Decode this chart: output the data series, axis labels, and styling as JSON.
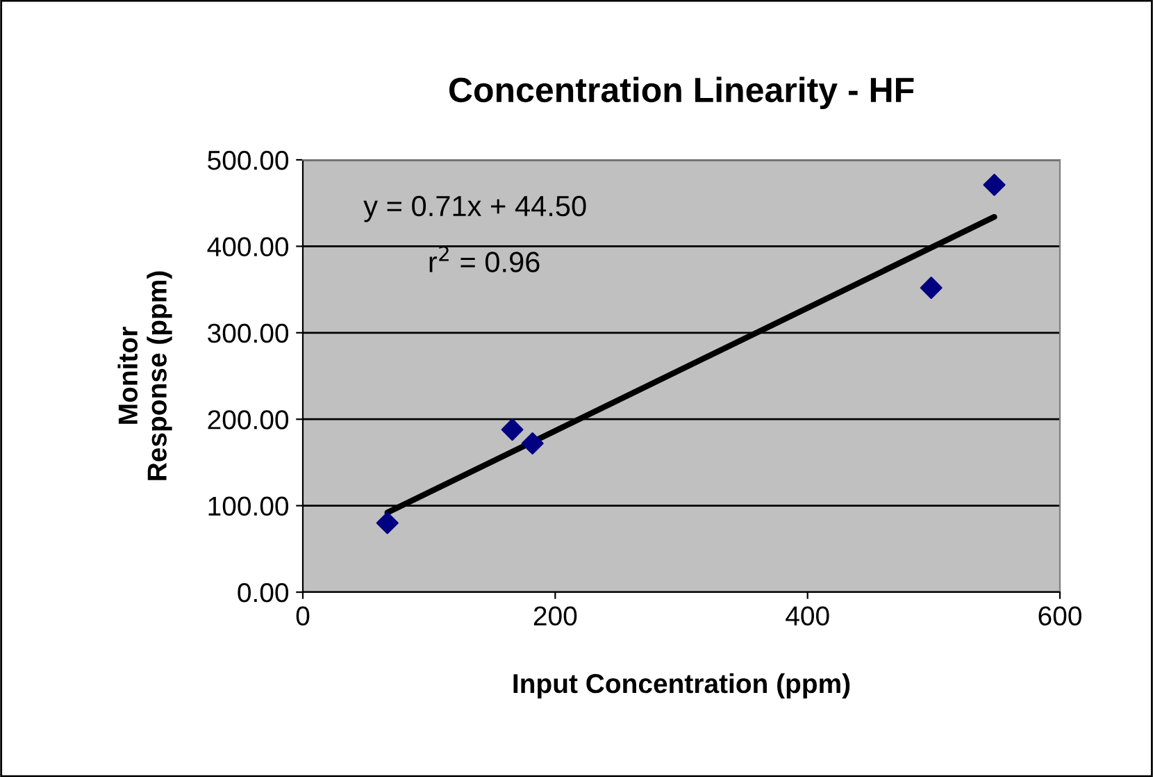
{
  "chart_data": {
    "type": "scatter",
    "title": "Concentration Linearity - HF",
    "xlabel": "Input Concentration (ppm)",
    "ylabel": "Monitor\nResponse (ppm)",
    "series": [
      {
        "color": "#000080",
        "marker": "diamond",
        "x": [
          67,
          166,
          182,
          498,
          548
        ],
        "values": [
          80,
          188,
          172,
          352,
          471
        ]
      },
      {
        "type": "line",
        "color": "#000000",
        "marker": "none",
        "line_style": "solid",
        "x": [
          67,
          548
        ],
        "values": [
          92,
          434
        ]
      }
    ],
    "annotations": [
      "y = 0.71x + 44.50",
      "r$^{2}$ = 0.96"
    ],
    "xlim": [
      0,
      600
    ],
    "xticks": [
      0,
      200,
      400,
      600
    ],
    "ylim": [
      0,
      500
    ],
    "yticks": [
      {
        "value": 0,
        "label": "0.00"
      },
      {
        "value": 100,
        "label": "100.00"
      },
      {
        "value": 200,
        "label": "200.00"
      },
      {
        "value": 300,
        "label": "300.00"
      },
      {
        "value": 400,
        "label": "400.00"
      },
      {
        "value": 500,
        "label": "500.00"
      }
    ],
    "grid": "y",
    "legend": false
  }
}
